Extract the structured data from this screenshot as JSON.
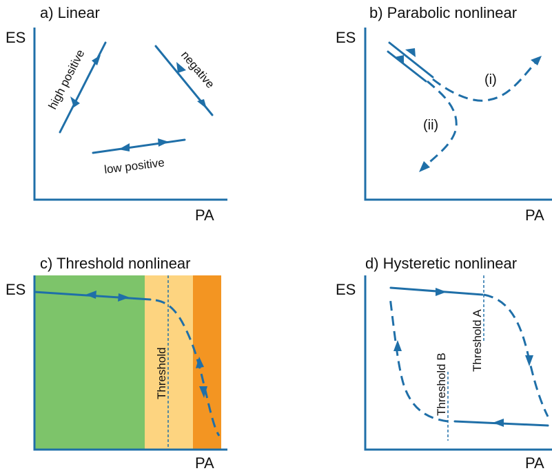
{
  "panels": {
    "a": {
      "title": "a) Linear",
      "y_axis": "ES",
      "x_axis": "PA",
      "labels": {
        "high_positive": "high positive",
        "negative": "negative",
        "low_positive": "low positive"
      }
    },
    "b": {
      "title": "b) Parabolic nonlinear",
      "y_axis": "ES",
      "x_axis": "PA",
      "labels": {
        "i": "(i)",
        "ii": "(ii)"
      }
    },
    "c": {
      "title": "c) Threshold nonlinear",
      "y_axis": "ES",
      "x_axis": "PA",
      "labels": {
        "threshold": "Threshold"
      },
      "zone_colors": {
        "green": "#7dc46a",
        "light_orange": "#fdd480",
        "orange": "#f39522"
      }
    },
    "d": {
      "title": "d) Hysteretic nonlinear",
      "y_axis": "ES",
      "x_axis": "PA",
      "labels": {
        "threshold_a": "Threshold A",
        "threshold_b": "Threshold B"
      }
    }
  },
  "colors": {
    "line": "#1f6fa8",
    "text": "#111111"
  }
}
